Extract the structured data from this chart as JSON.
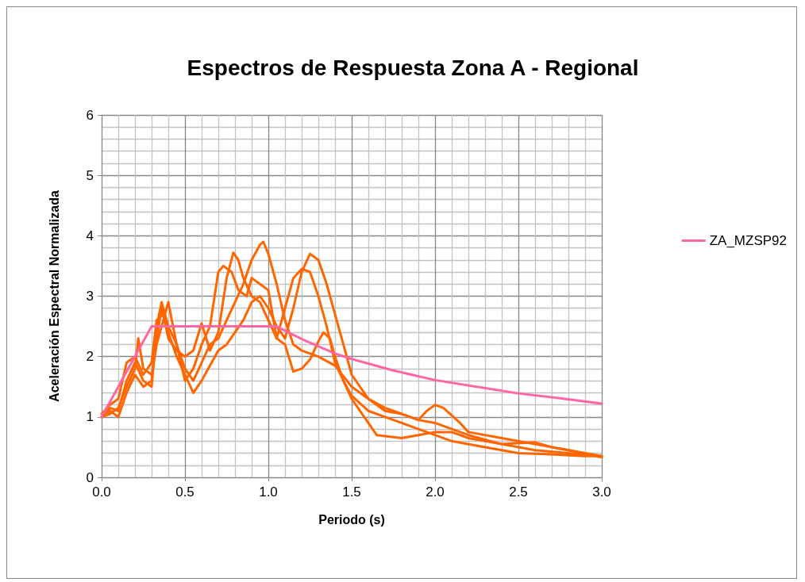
{
  "chart_data": {
    "type": "line",
    "title": "Espectros de Respuesta Zona A - Regional",
    "xlabel": "Periodo (s)",
    "ylabel": "Aceleración Espectral Normalizada",
    "xlim": [
      0,
      3
    ],
    "xticks": [
      {
        "value": 0,
        "label": "0.0"
      },
      {
        "value": 0.5,
        "label": "0.5"
      },
      {
        "value": 1,
        "label": "1.0"
      },
      {
        "value": 1.5,
        "label": "1.5"
      },
      {
        "value": 2,
        "label": "2.0"
      },
      {
        "value": 2.5,
        "label": "2.5"
      },
      {
        "value": 3,
        "label": "3.0"
      }
    ],
    "ylim": [
      0,
      6
    ],
    "yticks": [
      0,
      1,
      2,
      3,
      4,
      5,
      6
    ],
    "grid": true,
    "legend": "right",
    "marker": "none",
    "line_style": "solid",
    "series": [
      {
        "color": "#ff6600",
        "x": [
          0,
          0.05,
          0.1,
          0.15,
          0.2,
          0.25,
          0.3,
          0.33,
          0.36,
          0.4,
          0.45,
          0.5,
          0.55,
          0.6,
          0.65,
          0.7,
          0.75,
          0.8,
          0.85,
          0.9,
          0.95,
          0.97,
          1.0,
          1.05,
          1.1,
          1.15,
          1.2,
          1.3,
          1.4,
          1.5,
          1.6,
          1.7,
          1.8,
          1.9,
          2.0,
          2.2,
          2.4,
          2.6,
          2.8,
          3.0
        ],
        "values": [
          1.0,
          1.15,
          1.1,
          1.6,
          1.9,
          1.6,
          1.5,
          2.5,
          2.9,
          2.5,
          2.2,
          1.8,
          1.6,
          1.9,
          2.2,
          2.3,
          2.6,
          2.9,
          3.2,
          3.6,
          3.85,
          3.9,
          3.7,
          3.2,
          2.6,
          2.2,
          2.1,
          2.0,
          1.85,
          1.5,
          1.3,
          1.15,
          1.05,
          0.95,
          0.9,
          0.7,
          0.55,
          0.45,
          0.4,
          0.35
        ]
      },
      {
        "color": "#ff6600",
        "x": [
          0,
          0.05,
          0.1,
          0.15,
          0.2,
          0.25,
          0.3,
          0.33,
          0.36,
          0.4,
          0.45,
          0.5,
          0.55,
          0.6,
          0.65,
          0.7,
          0.75,
          0.8,
          0.85,
          0.9,
          0.95,
          1.0,
          1.05,
          1.1,
          1.15,
          1.2,
          1.25,
          1.3,
          1.35,
          1.4,
          1.45,
          1.5,
          1.6,
          1.7,
          1.8,
          1.9,
          1.95,
          2.0,
          2.05,
          2.15,
          2.2,
          2.4,
          2.6,
          2.8,
          3.0
        ],
        "values": [
          1.0,
          1.1,
          1.0,
          1.4,
          1.7,
          1.5,
          1.6,
          2.3,
          2.8,
          2.4,
          2.0,
          1.7,
          1.4,
          1.6,
          1.85,
          2.1,
          2.2,
          2.4,
          2.6,
          2.9,
          3.0,
          2.8,
          2.5,
          2.3,
          2.8,
          3.4,
          3.7,
          3.6,
          3.2,
          2.7,
          2.2,
          1.7,
          1.3,
          1.1,
          1.05,
          0.95,
          1.1,
          1.2,
          1.15,
          0.9,
          0.75,
          0.65,
          0.55,
          0.45,
          0.35
        ]
      },
      {
        "color": "#ff6600",
        "x": [
          0,
          0.05,
          0.1,
          0.15,
          0.2,
          0.25,
          0.3,
          0.33,
          0.37,
          0.4,
          0.45,
          0.5,
          0.55,
          0.6,
          0.65,
          0.7,
          0.75,
          0.79,
          0.82,
          0.85,
          0.9,
          0.95,
          1.0,
          1.05,
          1.1,
          1.15,
          1.2,
          1.25,
          1.3,
          1.35,
          1.4,
          1.5,
          1.6,
          1.65,
          1.8,
          1.9,
          2.0,
          2.1,
          2.2,
          2.4,
          2.6,
          2.7,
          2.8,
          3.0
        ],
        "values": [
          1.05,
          1.2,
          1.3,
          1.9,
          2.0,
          1.7,
          1.9,
          2.6,
          2.7,
          2.3,
          2.1,
          2.0,
          2.1,
          2.55,
          2.1,
          2.4,
          3.3,
          3.72,
          3.6,
          3.3,
          3.0,
          2.9,
          2.6,
          2.3,
          2.8,
          3.3,
          3.45,
          3.4,
          3.0,
          2.5,
          1.9,
          1.3,
          0.9,
          0.7,
          0.65,
          0.7,
          0.75,
          0.75,
          0.65,
          0.55,
          0.58,
          0.5,
          0.45,
          0.33
        ]
      },
      {
        "color": "#ff6600",
        "x": [
          0,
          0.05,
          0.1,
          0.15,
          0.2,
          0.22,
          0.25,
          0.3,
          0.33,
          0.36,
          0.4,
          0.45,
          0.5,
          0.55,
          0.6,
          0.65,
          0.7,
          0.73,
          0.78,
          0.82,
          0.87,
          0.9,
          0.95,
          1.0,
          1.05,
          1.1,
          1.15,
          1.2,
          1.25,
          1.3,
          1.33,
          1.37,
          1.4,
          1.45,
          1.5,
          1.6,
          1.7,
          1.8,
          1.9,
          2.0,
          2.1,
          2.3,
          2.5,
          2.7,
          2.9,
          3.0
        ],
        "values": [
          1.0,
          1.05,
          1.15,
          1.5,
          1.8,
          2.3,
          1.8,
          1.7,
          2.2,
          2.5,
          2.9,
          2.2,
          1.6,
          1.8,
          2.2,
          2.5,
          3.4,
          3.5,
          3.4,
          3.1,
          3.0,
          3.3,
          3.2,
          3.1,
          2.3,
          2.2,
          1.75,
          1.8,
          1.95,
          2.25,
          2.4,
          2.3,
          2.0,
          1.6,
          1.35,
          1.1,
          1.0,
          0.9,
          0.8,
          0.7,
          0.6,
          0.5,
          0.4,
          0.38,
          0.35,
          0.35
        ]
      },
      {
        "name": "ZA_MZSP92",
        "color": "#ff66a3",
        "x": [
          0,
          0.3,
          1.05,
          1.2,
          1.4,
          1.5,
          1.75,
          2.0,
          2.25,
          2.5,
          2.75,
          3.0
        ],
        "values": [
          1.0,
          2.5,
          2.5,
          2.29,
          2.05,
          1.96,
          1.77,
          1.61,
          1.5,
          1.39,
          1.31,
          1.22
        ]
      }
    ]
  }
}
